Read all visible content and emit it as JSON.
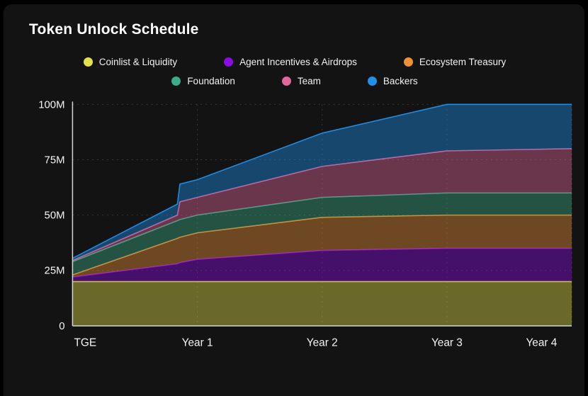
{
  "card": {
    "title": "Token Unlock Schedule"
  },
  "chart_data": {
    "type": "area",
    "stacked": true,
    "title": "Token Unlock Schedule",
    "grid": true,
    "legend_position": "top",
    "xlim": [
      0,
      4
    ],
    "ylim": [
      0,
      100
    ],
    "x": [
      0,
      0.84,
      0.86,
      1,
      2,
      3,
      4
    ],
    "x_ticks": [
      {
        "pos": 0,
        "label": "TGE"
      },
      {
        "pos": 1,
        "label": "Year 1"
      },
      {
        "pos": 2,
        "label": "Year 2"
      },
      {
        "pos": 3,
        "label": "Year 3"
      },
      {
        "pos": 4,
        "label": "Year 4"
      }
    ],
    "y_ticks": [
      {
        "value": 0,
        "label": "0"
      },
      {
        "value": 25,
        "label": "25M"
      },
      {
        "value": 50,
        "label": "50M"
      },
      {
        "value": 75,
        "label": "75M"
      },
      {
        "value": 100,
        "label": "100M"
      }
    ],
    "series": [
      {
        "name": "Coinlist & Liquidity",
        "color": "#e4e04a",
        "values": [
          20,
          20,
          20,
          20,
          20,
          20,
          20
        ]
      },
      {
        "name": "Agent Incentives & Airdrops",
        "color": "#8a0ce0",
        "values": [
          2,
          8,
          8.5,
          10,
          14,
          15,
          15
        ]
      },
      {
        "name": "Ecosystem Treasury",
        "color": "#ec9136",
        "values": [
          1,
          11.5,
          11.5,
          12,
          15,
          15,
          15
        ]
      },
      {
        "name": "Foundation",
        "color": "#3cab89",
        "values": [
          6,
          8,
          8,
          8,
          9,
          10,
          10
        ]
      },
      {
        "name": "Team",
        "color": "#e0679c",
        "values": [
          0.5,
          2.5,
          8,
          8,
          14,
          19,
          20
        ]
      },
      {
        "name": "Backers",
        "color": "#2090ea",
        "values": [
          1,
          5,
          8,
          8,
          15,
          21,
          20
        ]
      }
    ]
  },
  "colors": {
    "page_background": "#000000",
    "card_background": "#131313",
    "axis": "#d6d6d6",
    "grid": "#3a3a3a",
    "tick_text": "#f5f5f5",
    "title_text": "#ffffff"
  }
}
